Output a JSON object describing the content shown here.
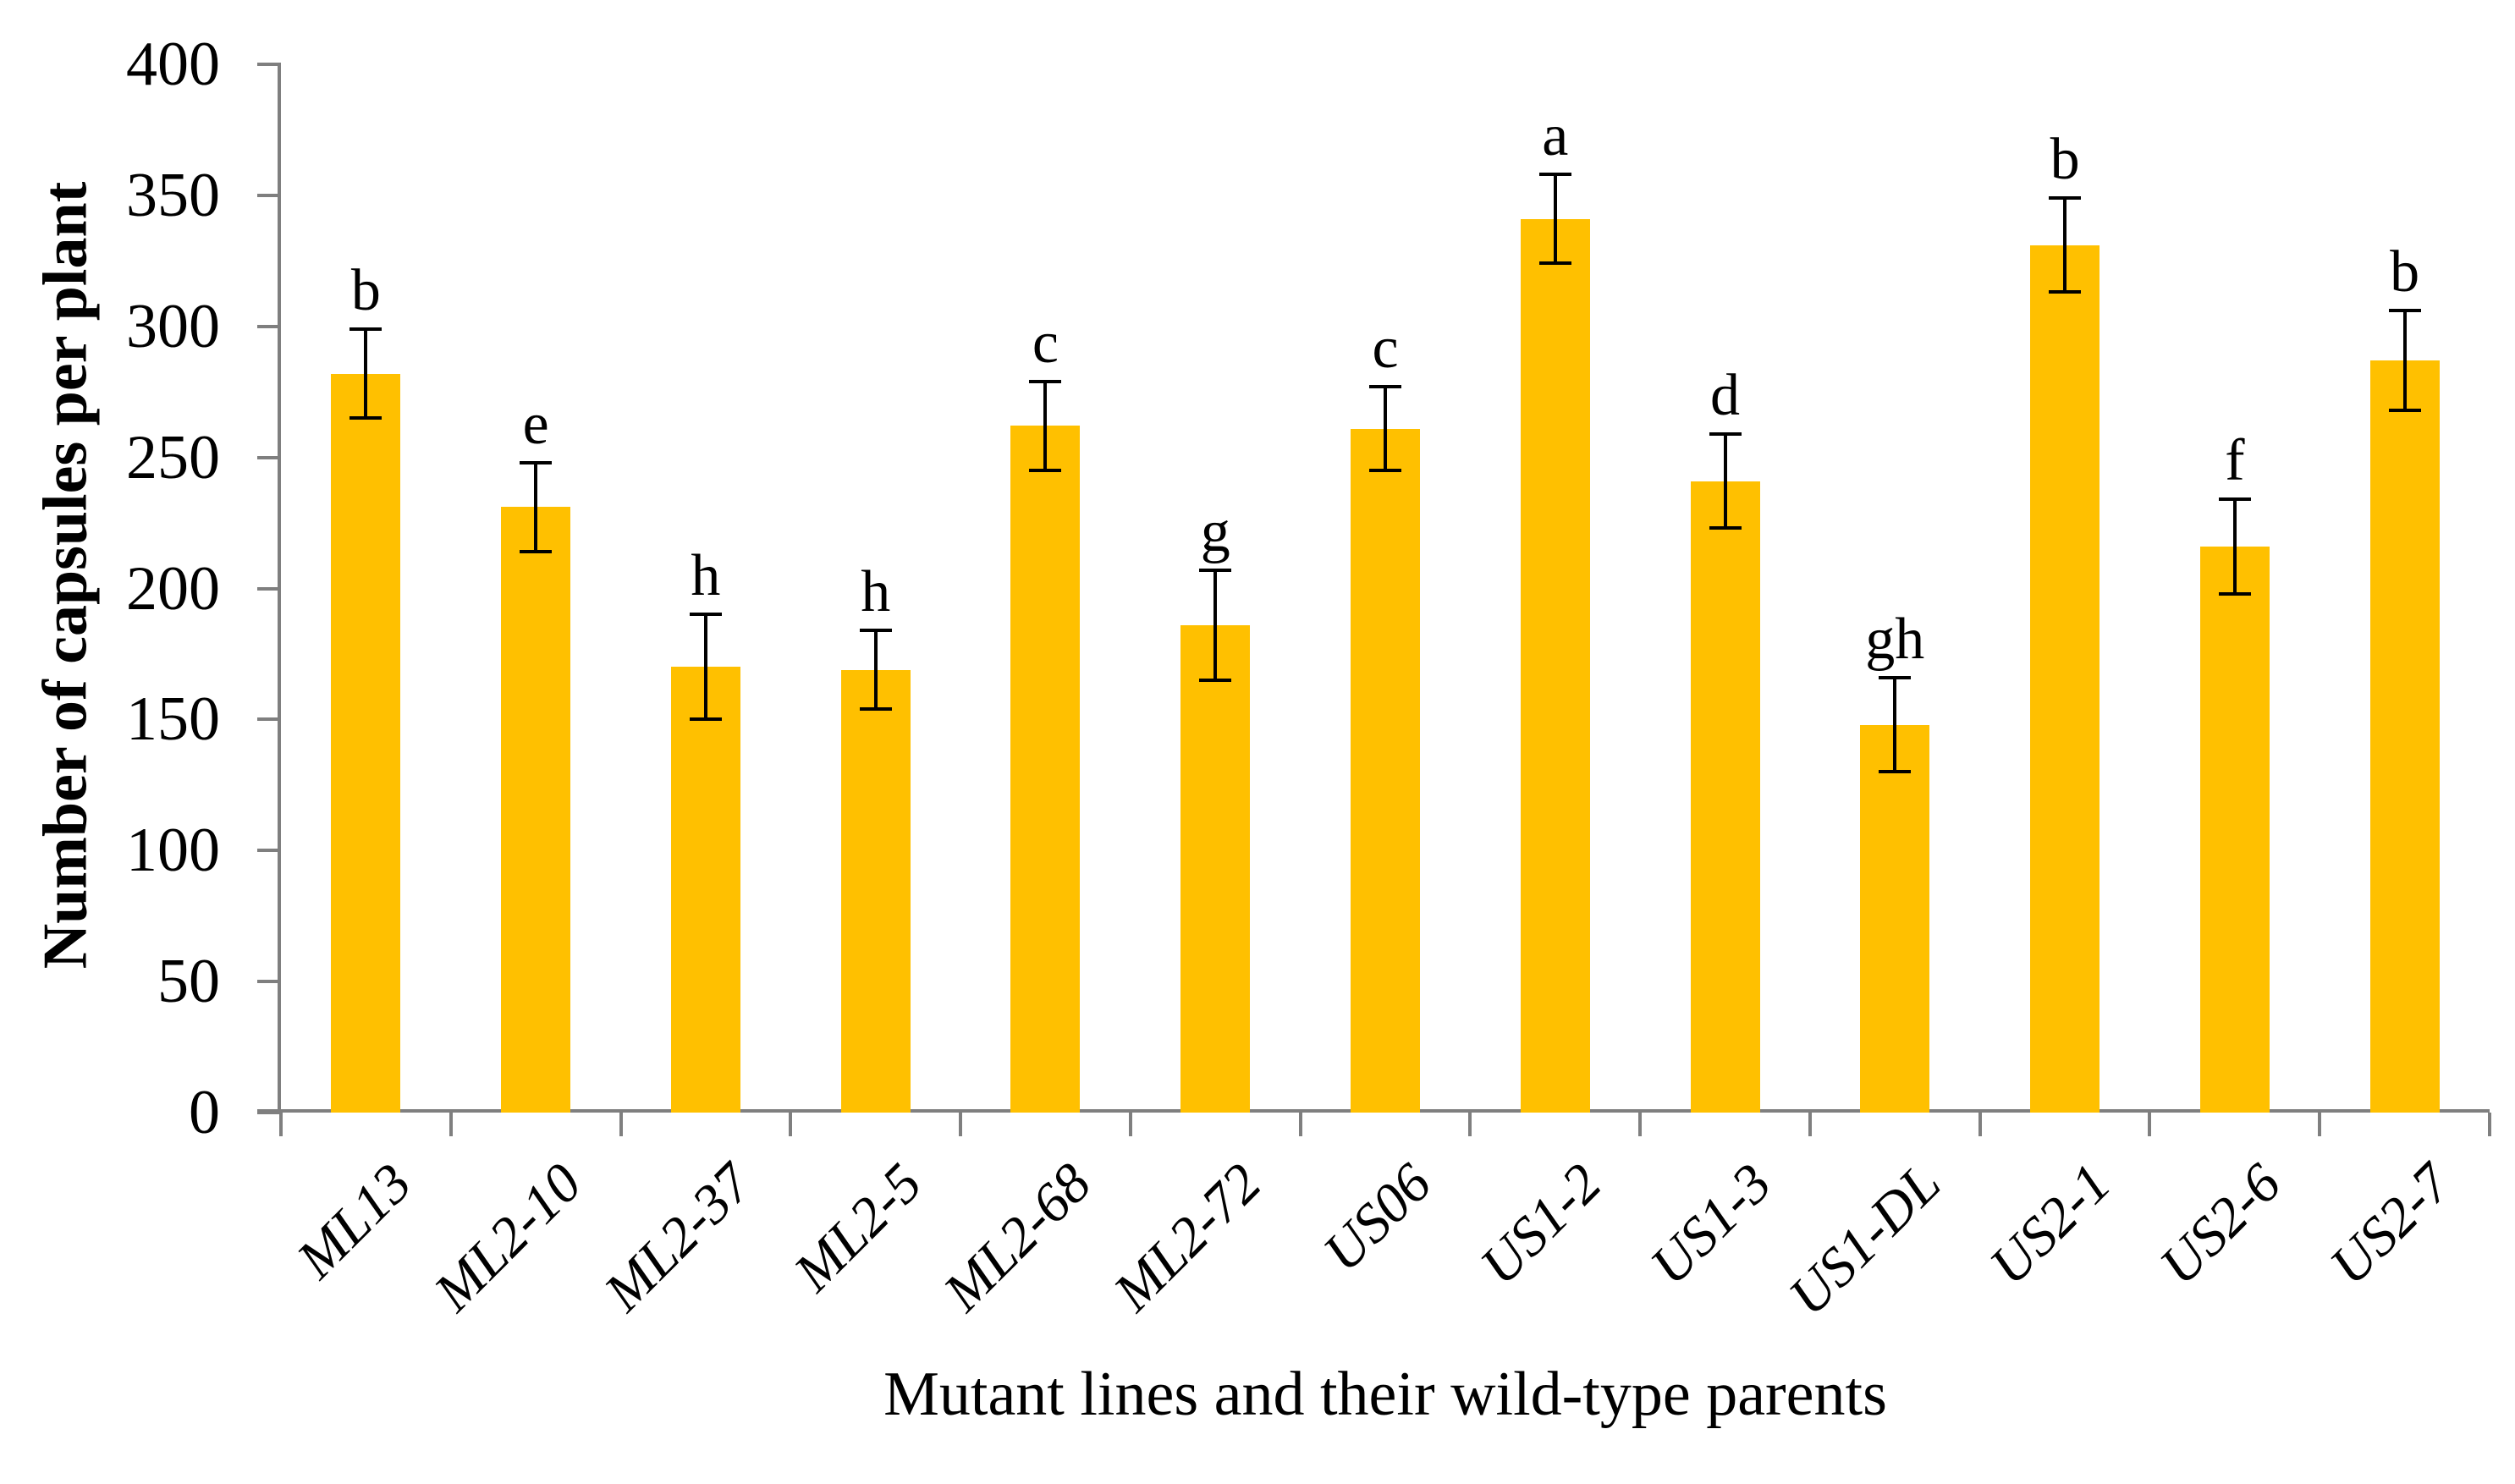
{
  "chart_data": {
    "type": "bar",
    "title": "",
    "xlabel": "Mutant lines and their wild-type parents",
    "ylabel": "Number of capsules per plant",
    "ylim": [
      0,
      400
    ],
    "yticks": [
      0,
      50,
      100,
      150,
      200,
      250,
      300,
      350,
      400
    ],
    "grid": false,
    "legend_position": "none",
    "bar_color": "#FFC000",
    "axis_color": "#7F7F7F",
    "error_color": "#000000",
    "categories": [
      "ML13",
      "ML2-10",
      "ML2-37",
      "ML2-5",
      "ML2-68",
      "ML2-72",
      "US06",
      "US1-2",
      "US1-3",
      "US1-DL",
      "US2-1",
      "US2-6",
      "US2-7"
    ],
    "series": [
      {
        "name": "Number of capsules per plant",
        "values": [
          282,
          231,
          170,
          169,
          262,
          186,
          261,
          341,
          241,
          148,
          331,
          216,
          287
        ],
        "errors": [
          17,
          17,
          20,
          15,
          17,
          21,
          16,
          17,
          18,
          18,
          18,
          18,
          19
        ],
        "sig_letters": [
          "b",
          "e",
          "h",
          "h",
          "c",
          "g",
          "c",
          "a",
          "d",
          "gh",
          "b",
          "f",
          "b"
        ]
      }
    ]
  }
}
